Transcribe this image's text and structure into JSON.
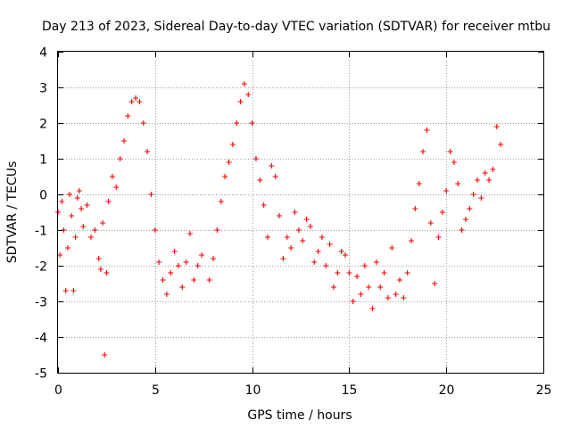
{
  "chart_data": {
    "type": "scatter",
    "title": "Day 213 of 2023, Sidereal Day-to-day VTEC variation (SDTVAR) for receiver mtbu",
    "xlabel": "GPS time / hours",
    "ylabel": "SDTVAR / TECUs",
    "xlim": [
      0,
      25
    ],
    "ylim": [
      -5,
      4
    ],
    "xticks": [
      "0",
      "5",
      "10",
      "15",
      "20",
      "25"
    ],
    "yticks": [
      "-5",
      "-4",
      "-3",
      "-2",
      "-1",
      "0",
      "1",
      "2",
      "3",
      "4"
    ],
    "grid": true,
    "marker": "+",
    "color": "#ff0000",
    "series": [
      {
        "name": "mtbu",
        "x": [
          0.0,
          0.1,
          0.2,
          0.3,
          0.4,
          0.5,
          0.6,
          0.7,
          0.8,
          0.9,
          1.0,
          1.1,
          1.2,
          1.3,
          1.5,
          1.7,
          1.9,
          2.1,
          2.2,
          2.3,
          2.4,
          2.5,
          2.6,
          2.8,
          3.0,
          3.2,
          3.4,
          3.6,
          3.8,
          4.0,
          4.2,
          4.4,
          4.6,
          4.8,
          5.0,
          5.2,
          5.4,
          5.6,
          5.8,
          6.0,
          6.2,
          6.4,
          6.6,
          6.8,
          7.0,
          7.2,
          7.4,
          7.8,
          8.0,
          8.2,
          8.4,
          8.6,
          8.8,
          9.0,
          9.2,
          9.4,
          9.6,
          9.8,
          10.0,
          10.2,
          10.4,
          10.6,
          10.8,
          11.0,
          11.2,
          11.4,
          11.6,
          11.8,
          12.0,
          12.2,
          12.4,
          12.6,
          12.8,
          13.0,
          13.2,
          13.4,
          13.6,
          13.8,
          14.0,
          14.2,
          14.4,
          14.6,
          14.8,
          15.0,
          15.2,
          15.4,
          15.6,
          15.8,
          16.0,
          16.2,
          16.4,
          16.6,
          16.8,
          17.0,
          17.2,
          17.4,
          17.6,
          17.8,
          18.0,
          18.2,
          18.4,
          18.6,
          18.8,
          19.0,
          19.2,
          19.4,
          19.6,
          19.8,
          20.0,
          20.2,
          20.4,
          20.6,
          20.8,
          21.0,
          21.2,
          21.4,
          21.6,
          21.8,
          22.0,
          22.2,
          22.4,
          22.6,
          22.8
        ],
        "y": [
          -0.5,
          -1.7,
          -0.2,
          -1.0,
          -2.7,
          -1.5,
          0.0,
          -0.6,
          -2.7,
          -1.2,
          -0.1,
          0.1,
          -0.4,
          -0.9,
          -0.3,
          -1.2,
          -1.0,
          -1.8,
          -2.1,
          -0.8,
          -4.5,
          -2.2,
          -0.2,
          0.5,
          0.2,
          1.0,
          1.5,
          2.2,
          2.6,
          2.7,
          2.6,
          2.0,
          1.2,
          0.0,
          -1.0,
          -1.9,
          -2.4,
          -2.8,
          -2.2,
          -1.6,
          -2.0,
          -2.6,
          -1.9,
          -1.1,
          -2.4,
          -2.0,
          -1.7,
          -2.4,
          -1.8,
          -1.0,
          -0.2,
          0.5,
          0.9,
          1.4,
          2.0,
          2.6,
          3.1,
          2.8,
          2.0,
          1.0,
          0.4,
          -0.3,
          -1.2,
          0.8,
          0.5,
          -0.6,
          -1.8,
          -1.2,
          -1.5,
          -0.5,
          -1.0,
          -1.3,
          -0.7,
          -0.9,
          -1.9,
          -1.6,
          -1.2,
          -2.0,
          -1.4,
          -2.6,
          -2.2,
          -1.6,
          -1.7,
          -2.2,
          -3.0,
          -2.3,
          -2.8,
          -2.0,
          -2.6,
          -3.2,
          -1.9,
          -2.6,
          -2.2,
          -2.9,
          -1.5,
          -2.8,
          -2.4,
          -2.9,
          -2.2,
          -1.3,
          -0.4,
          0.3,
          1.2,
          1.8,
          -0.8,
          -2.5,
          -1.2,
          -0.5,
          0.1,
          1.2,
          0.9,
          0.3,
          -1.0,
          -0.7,
          -0.4,
          0.0,
          0.4,
          -0.1,
          0.6,
          0.4,
          0.7,
          1.9,
          1.4
        ]
      }
    ]
  }
}
